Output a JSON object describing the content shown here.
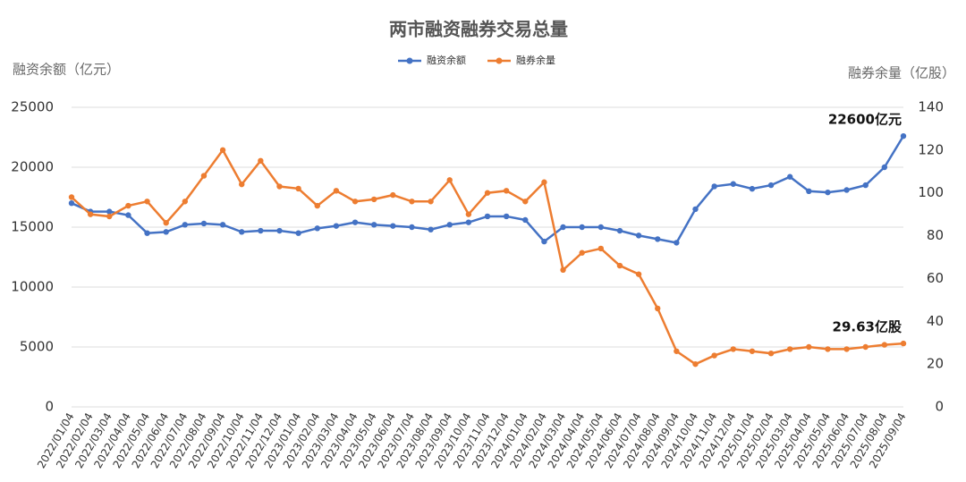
{
  "chart_data": {
    "type": "line",
    "title": "两市融资融券交易总量",
    "y_label": "融资余额（亿元）",
    "y2_label": "融券余量（亿股）",
    "categories": [
      "2022/01/04",
      "2022/02/04",
      "2022/03/04",
      "2022/04/04",
      "2022/05/04",
      "2022/06/04",
      "2022/07/04",
      "2022/08/04",
      "2022/09/04",
      "2022/10/04",
      "2022/11/04",
      "2022/12/04",
      "2023/01/04",
      "2023/02/04",
      "2023/03/04",
      "2023/04/04",
      "2023/05/04",
      "2023/06/04",
      "2023/07/04",
      "2023/08/04",
      "2023/09/04",
      "2023/10/04",
      "2023/11/04",
      "2023/12/04",
      "2024/01/04",
      "2024/02/04",
      "2024/03/04",
      "2024/04/04",
      "2024/05/04",
      "2024/06/04",
      "2024/07/04",
      "2024/08/04",
      "2024/09/04",
      "2024/10/04",
      "2024/11/04",
      "2024/12/04",
      "2025/01/04",
      "2025/02/04",
      "2025/03/04",
      "2025/04/04",
      "2025/05/04",
      "2025/06/04",
      "2025/07/04",
      "2025/08/04",
      "2025/09/04"
    ],
    "series": [
      {
        "name": "融资余额",
        "color": "#4472c4",
        "axis": "y",
        "end_label": "22600亿元",
        "values": [
          17000,
          16300,
          16300,
          16000,
          14500,
          14600,
          15200,
          15300,
          15200,
          14600,
          14700,
          14700,
          14500,
          14900,
          15100,
          15400,
          15200,
          15100,
          15000,
          14800,
          15200,
          15400,
          15900,
          15900,
          15600,
          13800,
          15000,
          15000,
          15000,
          14700,
          14300,
          14000,
          13700,
          16500,
          18400,
          18600,
          18200,
          18500,
          19200,
          18000,
          17900,
          18100,
          18500,
          20000,
          22600
        ]
      },
      {
        "name": "融券余量",
        "color": "#ed7d31",
        "axis": "y2",
        "end_label": "29.63亿股",
        "values": [
          98,
          90,
          89,
          94,
          96,
          86,
          96,
          108,
          120,
          104,
          115,
          103,
          102,
          94,
          101,
          96,
          97,
          99,
          96,
          96,
          106,
          90,
          100,
          101,
          96,
          105,
          64,
          72,
          74,
          66,
          62,
          46,
          26,
          20,
          24,
          27,
          26,
          25,
          27,
          28,
          27,
          27,
          28,
          29,
          29.63
        ]
      }
    ],
    "ylim": [
      0,
      25000
    ],
    "yticks": [
      0,
      5000,
      10000,
      15000,
      20000,
      25000
    ],
    "y2lim": [
      0,
      140
    ],
    "y2ticks": [
      0,
      20,
      40,
      60,
      80,
      100,
      120,
      140
    ],
    "grid": true
  }
}
